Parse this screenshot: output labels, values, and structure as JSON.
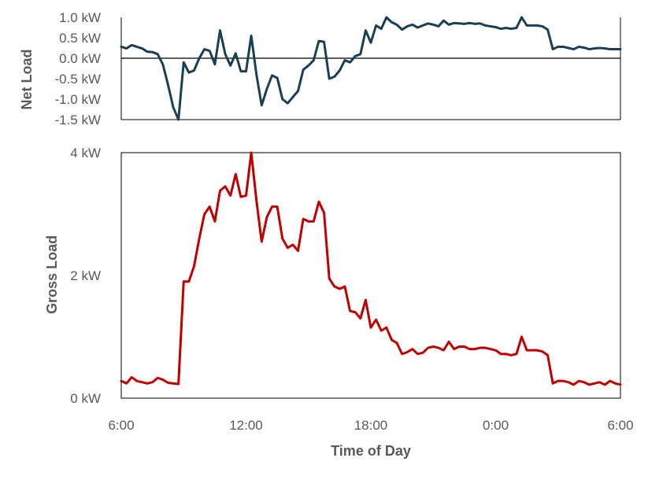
{
  "chart_data": [
    {
      "type": "line",
      "title": "",
      "ylabel": "Net Load",
      "xlabel": "",
      "ylim": [
        -1.5,
        1.0
      ],
      "xlim_hours": [
        6,
        30
      ],
      "yticks": [
        {
          "value": 1.0,
          "label": "1.0 kW"
        },
        {
          "value": 0.5,
          "label": "0.5 kW"
        },
        {
          "value": 0.0,
          "label": "0.0 kW"
        },
        {
          "value": -0.5,
          "label": "-0.5 kW"
        },
        {
          "value": -1.0,
          "label": "-1.0 kW"
        },
        {
          "value": -1.5,
          "label": "-1.5 kW"
        }
      ],
      "zero_line": true,
      "grid": false,
      "color": "#1a3f55",
      "series": [
        {
          "x": [
            6.0,
            6.25,
            6.5,
            6.75,
            7.0,
            7.25,
            7.5,
            7.75,
            8.0,
            8.25,
            8.5,
            8.75,
            9.0,
            9.25,
            9.5,
            9.75,
            10.0,
            10.25,
            10.5,
            10.75,
            11.0,
            11.25,
            11.5,
            11.75,
            12.0,
            12.25,
            12.5,
            12.75,
            13.0,
            13.25,
            13.5,
            13.75,
            14.0,
            14.25,
            14.5,
            14.75,
            15.0,
            15.25,
            15.5,
            15.75,
            16.0,
            16.25,
            16.5,
            16.75,
            17.0,
            17.25,
            17.5,
            17.75,
            18.0,
            18.25,
            18.5,
            18.75,
            19.0,
            19.25,
            19.5,
            19.75,
            20.0,
            20.25,
            20.5,
            20.75,
            21.0,
            21.25,
            21.5,
            21.75,
            22.0,
            22.25,
            22.5,
            22.75,
            23.0,
            23.25,
            23.5,
            23.75,
            24.0,
            24.25,
            24.5,
            24.75,
            25.0,
            25.25,
            25.5,
            25.75,
            26.0,
            26.25,
            26.5,
            26.75,
            27.0,
            27.25,
            27.5,
            27.75,
            28.0,
            28.25,
            28.5,
            28.75,
            29.0,
            29.25,
            29.5,
            29.75,
            30.0
          ],
          "values": [
            0.28,
            0.24,
            0.32,
            0.28,
            0.24,
            0.16,
            0.15,
            0.1,
            -0.15,
            -0.65,
            -1.2,
            -1.5,
            -0.1,
            -0.35,
            -0.3,
            0.0,
            0.22,
            0.18,
            -0.15,
            0.68,
            0.1,
            -0.18,
            0.12,
            -0.32,
            -0.32,
            0.55,
            -0.4,
            -1.15,
            -0.75,
            -0.42,
            -0.48,
            -1.0,
            -1.1,
            -0.95,
            -0.8,
            -0.28,
            -0.18,
            -0.05,
            0.42,
            0.4,
            -0.5,
            -0.45,
            -0.3,
            -0.05,
            -0.1,
            0.05,
            0.1,
            0.68,
            0.38,
            0.8,
            0.72,
            1.0,
            0.88,
            0.82,
            0.7,
            0.78,
            0.82,
            0.75,
            0.8,
            0.85,
            0.82,
            0.78,
            0.92,
            0.82,
            0.86,
            0.85,
            0.84,
            0.86,
            0.84,
            0.85,
            0.8,
            0.78,
            0.76,
            0.72,
            0.74,
            0.72,
            0.74,
            1.0,
            0.8,
            0.8,
            0.8,
            0.78,
            0.7,
            0.22,
            0.28,
            0.28,
            0.25,
            0.22,
            0.28,
            0.26,
            0.22,
            0.24,
            0.25,
            0.24,
            0.22,
            0.22,
            0.22
          ]
        }
      ]
    },
    {
      "type": "line",
      "title": "",
      "ylabel": "Gross Load",
      "xlabel": "Time of Day",
      "ylim": [
        0,
        4
      ],
      "xlim_hours": [
        6,
        30
      ],
      "yticks": [
        {
          "value": 0,
          "label": "0 kW"
        },
        {
          "value": 2,
          "label": "2 kW"
        },
        {
          "value": 4,
          "label": "4 kW"
        }
      ],
      "xticks": [
        {
          "value": 6,
          "label": "6:00"
        },
        {
          "value": 12,
          "label": "12:00"
        },
        {
          "value": 18,
          "label": "18:00"
        },
        {
          "value": 24,
          "label": "0:00"
        },
        {
          "value": 30,
          "label": "6:00"
        }
      ],
      "grid": false,
      "color": "#c00000",
      "series": [
        {
          "x": [
            6.0,
            6.25,
            6.5,
            6.75,
            7.0,
            7.25,
            7.5,
            7.75,
            8.0,
            8.25,
            8.5,
            8.75,
            9.0,
            9.25,
            9.5,
            9.75,
            10.0,
            10.25,
            10.5,
            10.75,
            11.0,
            11.25,
            11.5,
            11.75,
            12.0,
            12.25,
            12.5,
            12.75,
            13.0,
            13.25,
            13.5,
            13.75,
            14.0,
            14.25,
            14.5,
            14.75,
            15.0,
            15.25,
            15.5,
            15.75,
            16.0,
            16.25,
            16.5,
            16.75,
            17.0,
            17.25,
            17.5,
            17.75,
            18.0,
            18.25,
            18.5,
            18.75,
            19.0,
            19.25,
            19.5,
            19.75,
            20.0,
            20.25,
            20.5,
            20.75,
            21.0,
            21.25,
            21.5,
            21.75,
            22.0,
            22.25,
            22.5,
            22.75,
            23.0,
            23.25,
            23.5,
            23.75,
            24.0,
            24.25,
            24.5,
            24.75,
            25.0,
            25.25,
            25.5,
            25.75,
            26.0,
            26.25,
            26.5,
            26.75,
            27.0,
            27.25,
            27.5,
            27.75,
            28.0,
            28.25,
            28.5,
            28.75,
            29.0,
            29.25,
            29.5,
            29.75,
            30.0
          ],
          "values": [
            0.28,
            0.24,
            0.34,
            0.28,
            0.26,
            0.24,
            0.26,
            0.33,
            0.3,
            0.25,
            0.24,
            0.23,
            1.9,
            1.9,
            2.15,
            2.6,
            3.0,
            3.12,
            2.88,
            3.38,
            3.45,
            3.3,
            3.65,
            3.28,
            3.3,
            4.0,
            3.22,
            2.55,
            2.95,
            3.12,
            3.12,
            2.6,
            2.45,
            2.5,
            2.4,
            2.92,
            2.88,
            2.88,
            3.2,
            3.02,
            1.95,
            1.82,
            1.78,
            1.82,
            1.42,
            1.4,
            1.3,
            1.6,
            1.15,
            1.28,
            1.1,
            1.15,
            0.95,
            0.9,
            0.72,
            0.75,
            0.8,
            0.72,
            0.74,
            0.82,
            0.84,
            0.82,
            0.78,
            0.92,
            0.8,
            0.84,
            0.84,
            0.8,
            0.8,
            0.82,
            0.82,
            0.8,
            0.78,
            0.72,
            0.72,
            0.7,
            0.72,
            1.0,
            0.78,
            0.78,
            0.78,
            0.76,
            0.7,
            0.24,
            0.28,
            0.28,
            0.26,
            0.22,
            0.28,
            0.26,
            0.22,
            0.24,
            0.26,
            0.22,
            0.28,
            0.24,
            0.22
          ]
        }
      ]
    }
  ]
}
